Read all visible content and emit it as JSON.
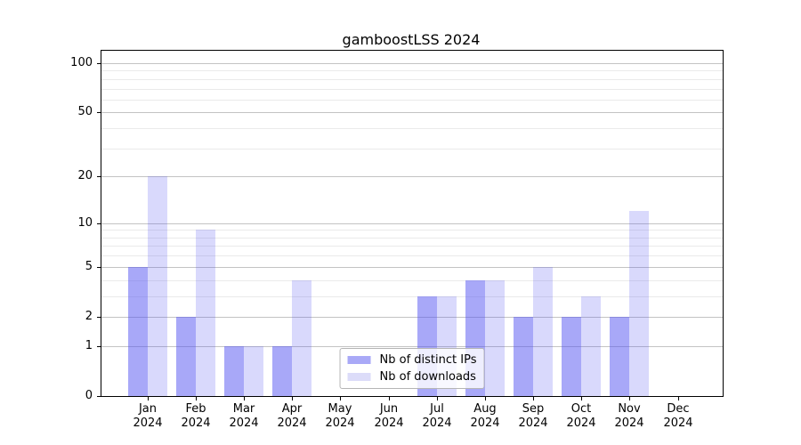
{
  "chart_data": {
    "type": "bar",
    "title": "gamboostLSS 2024",
    "categories": [
      {
        "month": "Jan",
        "year": "2024"
      },
      {
        "month": "Feb",
        "year": "2024"
      },
      {
        "month": "Mar",
        "year": "2024"
      },
      {
        "month": "Apr",
        "year": "2024"
      },
      {
        "month": "May",
        "year": "2024"
      },
      {
        "month": "Jun",
        "year": "2024"
      },
      {
        "month": "Jul",
        "year": "2024"
      },
      {
        "month": "Aug",
        "year": "2024"
      },
      {
        "month": "Sep",
        "year": "2024"
      },
      {
        "month": "Oct",
        "year": "2024"
      },
      {
        "month": "Nov",
        "year": "2024"
      },
      {
        "month": "Dec",
        "year": "2024"
      }
    ],
    "series": [
      {
        "name": "Nb of distinct IPs",
        "color": "rgba(82,82,242,0.5)",
        "legend_swatch_color": "#a9a9f7",
        "values": [
          5,
          2,
          1,
          1,
          0,
          0,
          3,
          4,
          2,
          2,
          2,
          0
        ]
      },
      {
        "name": "Nb of downloads",
        "color": "rgba(82,82,242,0.22)",
        "legend_swatch_color": "#dcdcf9",
        "values": [
          20,
          9,
          1,
          4,
          0,
          0,
          3,
          4,
          5,
          3,
          12,
          0
        ]
      }
    ],
    "yscale": "log1p",
    "ylim": [
      0,
      119
    ],
    "yticks": [
      0,
      1,
      2,
      5,
      10,
      20,
      50,
      100
    ],
    "minor_yticks": [
      3,
      4,
      6,
      7,
      8,
      9,
      30,
      40,
      60,
      70,
      80,
      90
    ],
    "grid": "horizontal",
    "legend_position": "lower center",
    "colors": {
      "bar_dark": "rgba(82,82,242,0.5)",
      "bar_light": "rgba(82,82,242,0.22)",
      "major_grid": "#c3c3c3",
      "minor_grid": "#eaeaea",
      "spine": "#000000",
      "background": "#ffffff"
    }
  }
}
